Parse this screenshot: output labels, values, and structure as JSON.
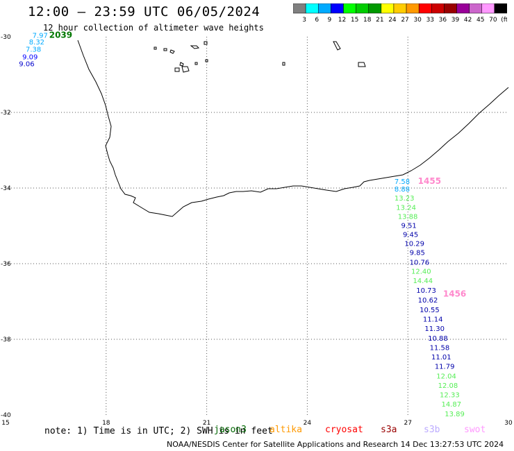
{
  "header": {
    "title": "12:00 – 23:59 UTC 06/05/2024",
    "subtitle": "12 hour collection of altimeter wave heights"
  },
  "colorbar": {
    "colors": [
      "#808080",
      "#00ffff",
      "#00aaff",
      "#0000ff",
      "#00ff00",
      "#00cc00",
      "#009900",
      "#ffff00",
      "#ffcc00",
      "#ff9900",
      "#ff0000",
      "#cc0000",
      "#990000",
      "#990099",
      "#cc66cc",
      "#ff99ff",
      "#000000"
    ],
    "labels": [
      "3",
      "6",
      "9",
      "12",
      "15",
      "18",
      "21",
      "24",
      "27",
      "30",
      "33",
      "36",
      "39",
      "42",
      "45",
      "70",
      "(ft)"
    ]
  },
  "axes": {
    "x_ticks": [
      "15",
      "18",
      "21",
      "24",
      "27",
      "30"
    ],
    "x_values": [
      15,
      18,
      21,
      24,
      27,
      30
    ],
    "y_ticks": [
      "-30",
      "-32",
      "-34",
      "-36",
      "-38",
      "-40"
    ],
    "y_values": [
      -30,
      -32,
      -34,
      -36,
      -38,
      -40
    ],
    "lon_range": [
      15,
      30
    ],
    "lat_range": [
      -30,
      -40
    ]
  },
  "tracks": [
    {
      "time": "2039",
      "time_color": "#007700",
      "time_lon": 16.3,
      "time_lat": -29.95,
      "points": [
        {
          "v": "7.97",
          "lon": 15.8,
          "lat": -29.95,
          "color": "#00aaff"
        },
        {
          "v": "8.32",
          "lon": 15.7,
          "lat": -30.13,
          "color": "#00aaff"
        },
        {
          "v": "7.38",
          "lon": 15.6,
          "lat": -30.32,
          "color": "#00aaff"
        },
        {
          "v": "9.09",
          "lon": 15.5,
          "lat": -30.52,
          "color": "#0000ff"
        },
        {
          "v": "9.06",
          "lon": 15.4,
          "lat": -30.71,
          "color": "#0000cc"
        }
      ]
    },
    {
      "time": "1455",
      "time_color": "#ff88cc",
      "time_lon": 27.3,
      "time_lat": -33.82,
      "points": [
        {
          "v": "7.58",
          "lon": 26.6,
          "lat": -33.82,
          "color": "#00aaff"
        },
        {
          "v": "8.88",
          "lon": 26.6,
          "lat": -34.02,
          "color": "#00aaff"
        },
        {
          "v": "13.23",
          "lon": 26.6,
          "lat": -34.26,
          "color": "#55ee55"
        },
        {
          "v": "13.24",
          "lon": 26.65,
          "lat": -34.5,
          "color": "#55ee55"
        },
        {
          "v": "13.88",
          "lon": 26.7,
          "lat": -34.74,
          "color": "#55ee55"
        },
        {
          "v": "9.51",
          "lon": 26.8,
          "lat": -34.98,
          "color": "#0000aa"
        },
        {
          "v": "9.45",
          "lon": 26.85,
          "lat": -35.22,
          "color": "#0000aa"
        },
        {
          "v": "10.29",
          "lon": 26.9,
          "lat": -35.46,
          "color": "#0000aa"
        }
      ]
    },
    {
      "time": "1456",
      "time_color": "#ff88cc",
      "time_lon": 28.05,
      "time_lat": -36.8,
      "points": [
        {
          "v": "9.85",
          "lon": 27.05,
          "lat": -35.7,
          "color": "#0000aa"
        },
        {
          "v": "10.76",
          "lon": 27.05,
          "lat": -35.95,
          "color": "#0000aa"
        },
        {
          "v": "12.40",
          "lon": 27.1,
          "lat": -36.19,
          "color": "#55ee55"
        },
        {
          "v": "14.44",
          "lon": 27.15,
          "lat": -36.44,
          "color": "#55ee55"
        },
        {
          "v": "10.73",
          "lon": 27.25,
          "lat": -36.7,
          "color": "#0000aa"
        },
        {
          "v": "10.62",
          "lon": 27.3,
          "lat": -36.95,
          "color": "#0000aa"
        },
        {
          "v": "10.55",
          "lon": 27.35,
          "lat": -37.21,
          "color": "#0000aa"
        },
        {
          "v": "11.14",
          "lon": 27.45,
          "lat": -37.46,
          "color": "#0000aa"
        },
        {
          "v": "11.30",
          "lon": 27.5,
          "lat": -37.71,
          "color": "#0000aa"
        },
        {
          "v": "10.88",
          "lon": 27.6,
          "lat": -37.96,
          "color": "#0000aa"
        },
        {
          "v": "11.58",
          "lon": 27.65,
          "lat": -38.21,
          "color": "#0000aa"
        },
        {
          "v": "11.01",
          "lon": 27.7,
          "lat": -38.46,
          "color": "#0000aa"
        },
        {
          "v": "11.79",
          "lon": 27.8,
          "lat": -38.71,
          "color": "#0000aa"
        },
        {
          "v": "12.04",
          "lon": 27.85,
          "lat": -38.96,
          "color": "#55ee55"
        },
        {
          "v": "12.08",
          "lon": 27.9,
          "lat": -39.21,
          "color": "#55ee55"
        },
        {
          "v": "12.33",
          "lon": 27.95,
          "lat": -39.46,
          "color": "#55ee55"
        },
        {
          "v": "14.87",
          "lon": 28.0,
          "lat": -39.71,
          "color": "#55ee55"
        },
        {
          "v": "13.89",
          "lon": 28.1,
          "lat": -39.96,
          "color": "#55ee55"
        }
      ]
    }
  ],
  "footer": {
    "note": "note:  1) Time is in UTC; 2) SWH is in feet",
    "satellites": [
      {
        "name": "jason3",
        "color": "#006600"
      },
      {
        "name": "altika",
        "color": "#ff9900"
      },
      {
        "name": "cryosat",
        "color": "#ff0000"
      },
      {
        "name": "s3a",
        "color": "#990000"
      },
      {
        "name": "s3b",
        "color": "#bbaaff"
      },
      {
        "name": "swot",
        "color": "#ff99ff"
      }
    ],
    "credit": "NOAA/NESDIS Center for Satellite Applications and Research    14 Dec 13:27:53 UTC 2024"
  }
}
